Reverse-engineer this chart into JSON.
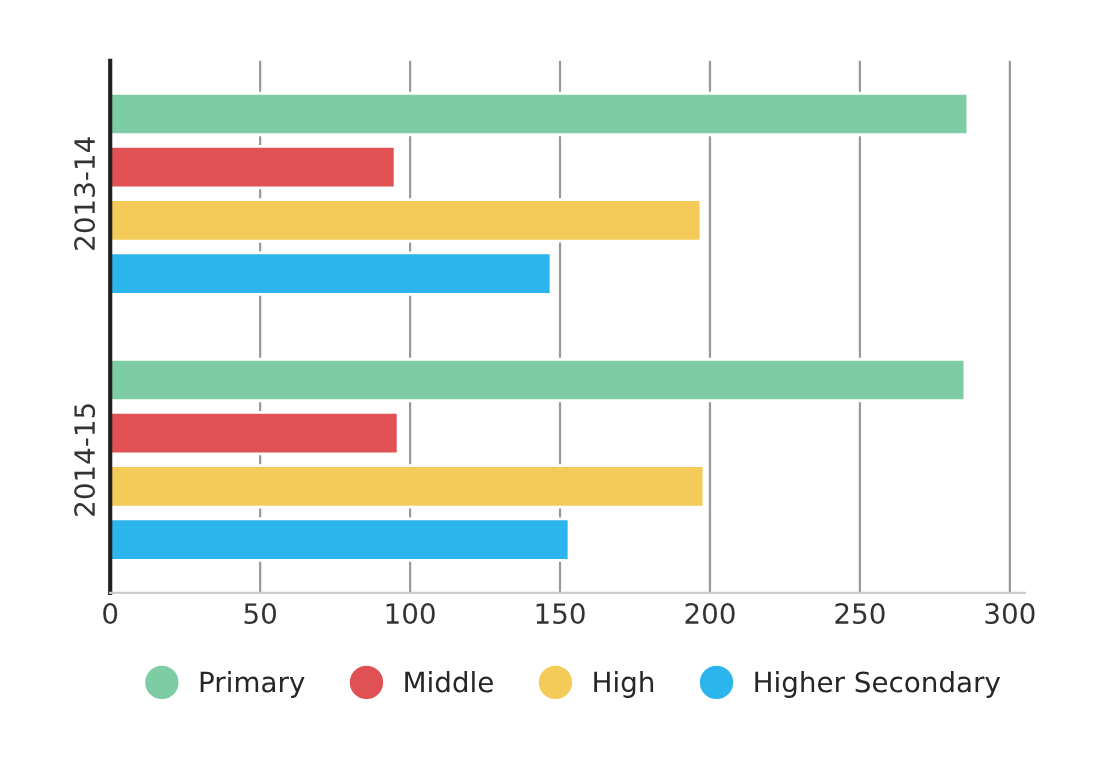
{
  "chart_data": {
    "type": "bar",
    "orientation": "horizontal",
    "categories": [
      "2013-14",
      "2014-15"
    ],
    "series": [
      {
        "name": "Primary",
        "color": "#7dcca4",
        "values": [
          286,
          285
        ]
      },
      {
        "name": "Middle",
        "color": "#e05153",
        "values": [
          95,
          96
        ]
      },
      {
        "name": "High",
        "color": "#f4cb58",
        "values": [
          197,
          198
        ]
      },
      {
        "name": "Higher Secondary",
        "color": "#2bb5ec",
        "values": [
          147,
          153
        ]
      }
    ],
    "xlim": [
      0,
      305
    ],
    "xticks": [
      0,
      50,
      100,
      150,
      200,
      250,
      300
    ],
    "grid": "x",
    "legend": "bottom"
  }
}
